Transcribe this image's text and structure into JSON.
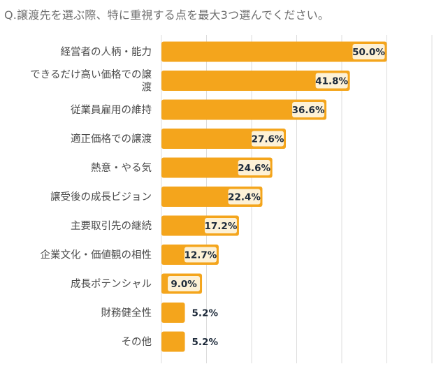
{
  "title": "Q.譲渡先を選ぶ際、特に重視する点を最大3つ選んでください。",
  "colors": {
    "bar": "#f4a51c",
    "label_bg": "#fdf1d6",
    "gridline": "#dcdcdc"
  },
  "chart_data": {
    "type": "bar",
    "orientation": "horizontal",
    "title": "Q.譲渡先を選ぶ際、特に重視する点を最大3つ選んでください。",
    "xlabel": "",
    "ylabel": "",
    "xlim": [
      0,
      60
    ],
    "grid": true,
    "unit": "%",
    "categories": [
      "経営者の人柄・能力",
      "できるだけ高い価格での譲渡",
      "従業員雇用の維持",
      "適正価格での譲渡",
      "熱意・やる気",
      "譲受後の成長ビジョン",
      "主要取引先の継続",
      "企業文化・価値観の相性",
      "成長ポテンシャル",
      "財務健全性",
      "その他"
    ],
    "category_lines": [
      [
        "経営者の人柄・能力"
      ],
      [
        "できるだけ高い価格での譲",
        "渡"
      ],
      [
        "従業員雇用の維持"
      ],
      [
        "適正価格での譲渡"
      ],
      [
        "熱意・やる気"
      ],
      [
        "譲受後の成長ビジョン"
      ],
      [
        "主要取引先の継続"
      ],
      [
        "企業文化・価値観の相性"
      ],
      [
        "成長ポテンシャル"
      ],
      [
        "財務健全性"
      ],
      [
        "その他"
      ]
    ],
    "values": [
      50.0,
      41.8,
      36.6,
      27.6,
      24.6,
      22.4,
      17.2,
      12.7,
      9.0,
      5.2,
      5.2
    ],
    "value_labels": [
      "50.0%",
      "41.8%",
      "36.6%",
      "27.6%",
      "24.6%",
      "22.4%",
      "17.2%",
      "12.7%",
      "9.0%",
      "5.2%",
      "5.2%"
    ]
  }
}
